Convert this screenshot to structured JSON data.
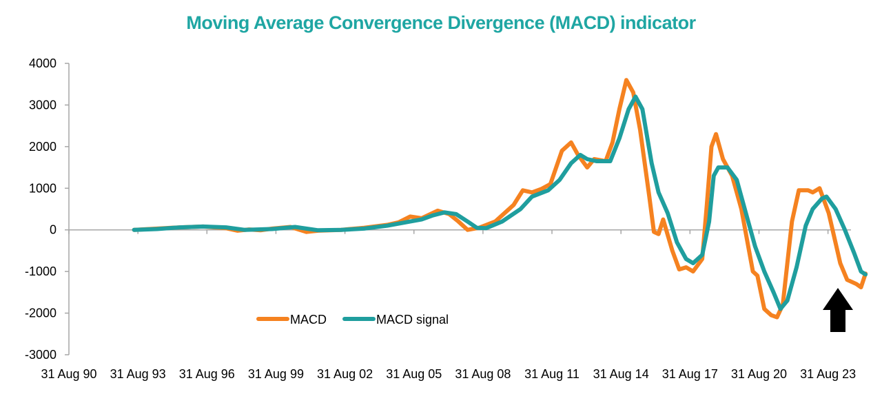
{
  "chart_data": {
    "type": "line",
    "title": "Moving Average Convergence Divergence (MACD) indicator",
    "xlabel": "",
    "ylabel": "",
    "x_tick_labels": [
      "31 Aug 90",
      "31 Aug 93",
      "31 Aug 96",
      "31 Aug 99",
      "31 Aug 02",
      "31 Aug 05",
      "31 Aug 08",
      "31 Aug 11",
      "31 Aug 14",
      "31 Aug 17",
      "31 Aug 20",
      "31 Aug 23"
    ],
    "x_range": [
      1990.667,
      2024.667
    ],
    "y_ticks": [
      "4000",
      "3000",
      "2000",
      "1000",
      "0",
      "-1000",
      "-2000",
      "-3000"
    ],
    "ylim": [
      -3000,
      4000
    ],
    "grid": false,
    "legend_position": "bottom-left inside plot",
    "annotation": "black up-arrow below last data point",
    "colors": {
      "macd": "#f58220",
      "signal": "#1f9e9e",
      "title": "#1fa6a3",
      "axis": "#a6a6a6",
      "arrow": "#000000"
    },
    "series": [
      {
        "name": "MACD",
        "points": [
          [
            1993.5,
            0
          ],
          [
            1994.5,
            30
          ],
          [
            1995.5,
            60
          ],
          [
            1996.5,
            80
          ],
          [
            1997.5,
            40
          ],
          [
            1998.0,
            -20
          ],
          [
            1998.5,
            10
          ],
          [
            1999.0,
            -10
          ],
          [
            1999.5,
            30
          ],
          [
            2000.3,
            70
          ],
          [
            2001.0,
            -50
          ],
          [
            2001.5,
            -20
          ],
          [
            2002.5,
            0
          ],
          [
            2003.5,
            50
          ],
          [
            2004.5,
            120
          ],
          [
            2005.0,
            180
          ],
          [
            2005.5,
            320
          ],
          [
            2006.0,
            280
          ],
          [
            2006.7,
            460
          ],
          [
            2007.2,
            380
          ],
          [
            2007.6,
            200
          ],
          [
            2008.0,
            0
          ],
          [
            2008.5,
            50
          ],
          [
            2009.2,
            200
          ],
          [
            2010.0,
            600
          ],
          [
            2010.4,
            950
          ],
          [
            2010.8,
            900
          ],
          [
            2011.2,
            980
          ],
          [
            2011.6,
            1100
          ],
          [
            2012.1,
            1900
          ],
          [
            2012.5,
            2100
          ],
          [
            2012.8,
            1800
          ],
          [
            2013.2,
            1500
          ],
          [
            2013.5,
            1700
          ],
          [
            2014.0,
            1650
          ],
          [
            2014.3,
            2100
          ],
          [
            2014.6,
            2900
          ],
          [
            2014.9,
            3600
          ],
          [
            2015.2,
            3300
          ],
          [
            2015.5,
            2400
          ],
          [
            2015.9,
            800
          ],
          [
            2016.1,
            -50
          ],
          [
            2016.3,
            -100
          ],
          [
            2016.5,
            250
          ],
          [
            2016.9,
            -500
          ],
          [
            2017.2,
            -950
          ],
          [
            2017.5,
            -900
          ],
          [
            2017.8,
            -1000
          ],
          [
            2018.2,
            -700
          ],
          [
            2018.4,
            600
          ],
          [
            2018.6,
            2000
          ],
          [
            2018.8,
            2300
          ],
          [
            2019.1,
            1700
          ],
          [
            2019.5,
            1300
          ],
          [
            2019.9,
            500
          ],
          [
            2020.4,
            -1000
          ],
          [
            2020.6,
            -1100
          ],
          [
            2020.9,
            -1900
          ],
          [
            2021.2,
            -2050
          ],
          [
            2021.45,
            -2100
          ],
          [
            2021.7,
            -1800
          ],
          [
            2022.1,
            200
          ],
          [
            2022.4,
            950
          ],
          [
            2022.8,
            950
          ],
          [
            2023.0,
            900
          ],
          [
            2023.3,
            1000
          ],
          [
            2023.7,
            400
          ],
          [
            2024.2,
            -800
          ],
          [
            2024.5,
            -1200
          ],
          [
            2024.9,
            -1300
          ],
          [
            2025.1,
            -1380
          ],
          [
            2025.3,
            -1050
          ]
        ]
      },
      {
        "name": "MACD signal",
        "points": [
          [
            1993.5,
            0
          ],
          [
            1994.5,
            20
          ],
          [
            1995.5,
            60
          ],
          [
            1996.5,
            80
          ],
          [
            1997.5,
            60
          ],
          [
            1998.3,
            0
          ],
          [
            1999.5,
            20
          ],
          [
            2000.5,
            70
          ],
          [
            2001.5,
            -10
          ],
          [
            2002.5,
            0
          ],
          [
            2003.5,
            30
          ],
          [
            2004.5,
            100
          ],
          [
            2005.5,
            200
          ],
          [
            2006.0,
            250
          ],
          [
            2006.5,
            350
          ],
          [
            2007.0,
            420
          ],
          [
            2007.5,
            380
          ],
          [
            2008.0,
            200
          ],
          [
            2008.4,
            50
          ],
          [
            2008.8,
            40
          ],
          [
            2009.5,
            200
          ],
          [
            2010.3,
            500
          ],
          [
            2010.8,
            800
          ],
          [
            2011.5,
            950
          ],
          [
            2012.0,
            1200
          ],
          [
            2012.5,
            1600
          ],
          [
            2012.9,
            1800
          ],
          [
            2013.2,
            1700
          ],
          [
            2013.6,
            1650
          ],
          [
            2014.2,
            1650
          ],
          [
            2014.6,
            2200
          ],
          [
            2015.0,
            2900
          ],
          [
            2015.3,
            3200
          ],
          [
            2015.6,
            2900
          ],
          [
            2016.0,
            1600
          ],
          [
            2016.3,
            900
          ],
          [
            2016.7,
            400
          ],
          [
            2017.1,
            -300
          ],
          [
            2017.5,
            -700
          ],
          [
            2017.8,
            -800
          ],
          [
            2018.2,
            -600
          ],
          [
            2018.5,
            200
          ],
          [
            2018.7,
            1300
          ],
          [
            2018.9,
            1500
          ],
          [
            2019.3,
            1500
          ],
          [
            2019.7,
            1200
          ],
          [
            2020.1,
            400
          ],
          [
            2020.5,
            -400
          ],
          [
            2020.9,
            -1000
          ],
          [
            2021.3,
            -1500
          ],
          [
            2021.6,
            -1900
          ],
          [
            2021.9,
            -1700
          ],
          [
            2022.3,
            -900
          ],
          [
            2022.7,
            100
          ],
          [
            2023.0,
            500
          ],
          [
            2023.4,
            750
          ],
          [
            2023.6,
            800
          ],
          [
            2024.0,
            500
          ],
          [
            2024.4,
            0
          ],
          [
            2024.8,
            -550
          ],
          [
            2025.1,
            -1000
          ],
          [
            2025.3,
            -1070
          ]
        ]
      }
    ]
  }
}
